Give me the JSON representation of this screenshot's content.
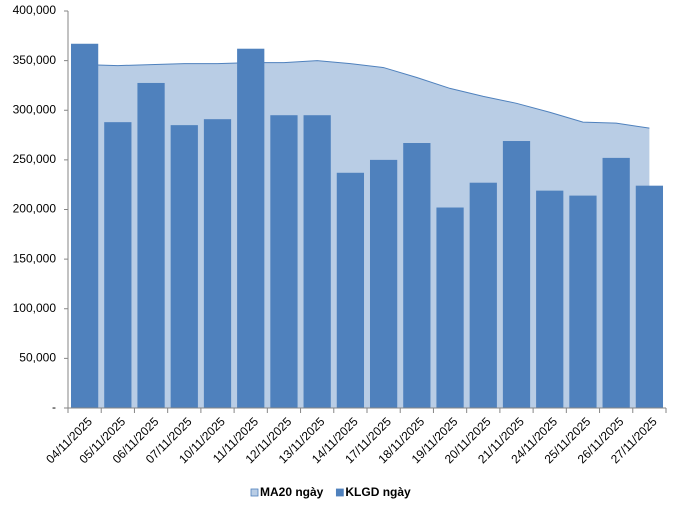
{
  "chart_data": {
    "type": "bar",
    "categories": [
      "04/11/2025",
      "05/11/2025",
      "06/11/2025",
      "07/11/2025",
      "10/11/2025",
      "11/11/2025",
      "12/11/2025",
      "13/11/2025",
      "14/11/2025",
      "17/11/2025",
      "18/11/2025",
      "19/11/2025",
      "20/11/2025",
      "21/11/2025",
      "24/11/2025",
      "25/11/2025",
      "26/11/2025",
      "27/11/2025"
    ],
    "series": [
      {
        "name": "MA20 ngày",
        "type": "area",
        "color": "#b9cde5",
        "values": [
          346000,
          345000,
          346000,
          347000,
          347000,
          348000,
          348000,
          350000,
          347000,
          343000,
          333000,
          322000,
          314000,
          307000,
          298000,
          288000,
          287000,
          282000
        ]
      },
      {
        "name": "KLGD ngày",
        "type": "bar",
        "color": "#4f81bd",
        "values": [
          367000,
          288000,
          327500,
          285000,
          291000,
          362000,
          295000,
          295000,
          237000,
          250000,
          267000,
          202000,
          227000,
          269000,
          219000,
          214000,
          252000,
          224000
        ]
      }
    ],
    "ylim": [
      0,
      400000
    ],
    "yticks": [
      {
        "value": 0,
        "label": "-"
      },
      {
        "value": 50000,
        "label": "50,000"
      },
      {
        "value": 100000,
        "label": "100,000"
      },
      {
        "value": 150000,
        "label": "150,000"
      },
      {
        "value": 200000,
        "label": "200,000"
      },
      {
        "value": 250000,
        "label": "250,000"
      },
      {
        "value": 300000,
        "label": "300,000"
      },
      {
        "value": 350000,
        "label": "350,000"
      },
      {
        "value": 400000,
        "label": "400,000"
      }
    ],
    "legend": "bottom"
  }
}
